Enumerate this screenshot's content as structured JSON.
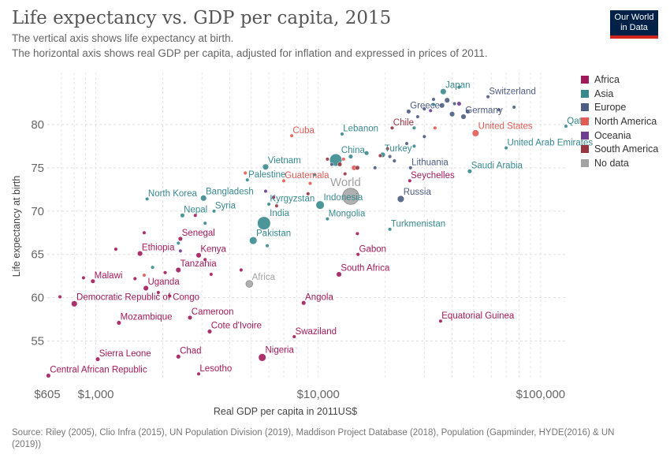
{
  "header": {
    "title": "Life expectancy vs. GDP per capita, 2015",
    "subtitle_line1": "The vertical axis shows life expectancy at birth.",
    "subtitle_line2": "The horizontal axis shows real GDP per capita, adjusted for inflation and expressed in prices of 2011.",
    "logo_line1": "Our World",
    "logo_line2": "in Data"
  },
  "footer": {
    "source": "Source: Riley (2005), Clio Infra (2015), UN Population Division (2019), Maddison Project Database (2018), Population (Gapminder, HYDE(2016) & UN (2019))"
  },
  "chart_data": {
    "type": "scatter",
    "title": "Life expectancy vs. GDP per capita, 2015",
    "xlabel": "Real GDP per capita in 2011US$",
    "ylabel": "Life expectancy at birth",
    "x_scale": "log",
    "xlim": [
      605,
      130000
    ],
    "ylim": [
      50.5,
      86
    ],
    "x_ticks": [
      {
        "value": 605,
        "label": "$605"
      },
      {
        "value": 1000,
        "label": "$1,000"
      },
      {
        "value": 10000,
        "label": "$10,000"
      },
      {
        "value": 100000,
        "label": "$100,000"
      }
    ],
    "y_ticks": [
      55,
      60,
      65,
      70,
      75,
      80
    ],
    "grid": "dashed",
    "legend_position": "right",
    "legend": [
      {
        "name": "Africa",
        "color": "#a2195b"
      },
      {
        "name": "Asia",
        "color": "#38898e"
      },
      {
        "name": "Europe",
        "color": "#4c5c82"
      },
      {
        "name": "North America",
        "color": "#e35a54"
      },
      {
        "name": "Oceania",
        "color": "#6d3e91"
      },
      {
        "name": "South America",
        "color": "#993441"
      },
      {
        "name": "No data",
        "color": "#a2a2a2"
      }
    ],
    "points": [
      {
        "label": "Central African Republic",
        "continent": "Africa",
        "gdp": 612,
        "life": 51.0,
        "size": 4,
        "labeled": true
      },
      {
        "label": "Sierra Leone",
        "continent": "Africa",
        "gdp": 1020,
        "life": 52.9,
        "size": 4,
        "labeled": true
      },
      {
        "label": "Chad",
        "continent": "Africa",
        "gdp": 2350,
        "life": 53.2,
        "size": 4,
        "labeled": true
      },
      {
        "label": "Lesotho",
        "continent": "Africa",
        "gdp": 2900,
        "life": 51.2,
        "size": 3,
        "labeled": true
      },
      {
        "label": "Nigeria",
        "continent": "Africa",
        "gdp": 5600,
        "life": 53.1,
        "size": 8,
        "labeled": true
      },
      {
        "label": "Mozambique",
        "continent": "Africa",
        "gdp": 1270,
        "life": 57.1,
        "size": 4,
        "labeled": true
      },
      {
        "label": "Cameroon",
        "continent": "Africa",
        "gdp": 2650,
        "life": 57.7,
        "size": 4,
        "labeled": true
      },
      {
        "label": "Cote d'Ivoire",
        "continent": "Africa",
        "gdp": 3250,
        "life": 56.1,
        "size": 4,
        "labeled": true
      },
      {
        "label": "Swaziland",
        "continent": "Africa",
        "gdp": 7800,
        "life": 55.5,
        "size": 3,
        "labeled": true
      },
      {
        "label": "Democratic Republic of Congo",
        "continent": "Africa",
        "gdp": 800,
        "life": 59.3,
        "size": 6,
        "labeled": true
      },
      {
        "label": "Malawi",
        "continent": "Africa",
        "gdp": 970,
        "life": 61.9,
        "size": 4,
        "labeled": true
      },
      {
        "label": "Uganda",
        "continent": "Africa",
        "gdp": 1680,
        "life": 61.1,
        "size": 5,
        "labeled": true
      },
      {
        "label": "Angola",
        "continent": "Africa",
        "gdp": 8600,
        "life": 59.4,
        "size": 4,
        "labeled": true
      },
      {
        "label": "Tanzania",
        "continent": "Africa",
        "gdp": 2350,
        "life": 63.2,
        "size": 5,
        "labeled": true
      },
      {
        "label": "Kenya",
        "continent": "Africa",
        "gdp": 2900,
        "life": 64.9,
        "size": 5,
        "labeled": true
      },
      {
        "label": "Senegal",
        "continent": "Africa",
        "gdp": 2400,
        "life": 66.8,
        "size": 4,
        "labeled": true
      },
      {
        "label": "Ethiopia",
        "continent": "Africa",
        "gdp": 1580,
        "life": 65.1,
        "size": 5,
        "labeled": true
      },
      {
        "label": "Gabon",
        "continent": "Africa",
        "gdp": 15100,
        "life": 65.0,
        "size": 3,
        "labeled": true
      },
      {
        "label": "South Africa",
        "continent": "Africa",
        "gdp": 12400,
        "life": 62.7,
        "size": 5,
        "labeled": true
      },
      {
        "label": "Seychelles",
        "continent": "Africa",
        "gdp": 25800,
        "life": 73.5,
        "size": 3,
        "labeled": true
      },
      {
        "label": "Equatorial Guinea",
        "continent": "Africa",
        "gdp": 35500,
        "life": 57.3,
        "size": 3,
        "labeled": true
      },
      {
        "label": "",
        "continent": "Africa",
        "gdp": 690,
        "life": 60.1,
        "size": 3,
        "labeled": false
      },
      {
        "label": "",
        "continent": "Africa",
        "gdp": 880,
        "life": 62.3,
        "size": 3,
        "labeled": false
      },
      {
        "label": "",
        "continent": "Africa",
        "gdp": 1230,
        "life": 65.6,
        "size": 3,
        "labeled": false
      },
      {
        "label": "",
        "continent": "Africa",
        "gdp": 1500,
        "life": 62.2,
        "size": 3,
        "labeled": false
      },
      {
        "label": "",
        "continent": "Africa",
        "gdp": 1910,
        "life": 60.6,
        "size": 3,
        "labeled": false
      },
      {
        "label": "",
        "continent": "Africa",
        "gdp": 2050,
        "life": 62.9,
        "size": 3,
        "labeled": false
      },
      {
        "label": "",
        "continent": "Africa",
        "gdp": 3300,
        "life": 62.7,
        "size": 3,
        "labeled": false
      },
      {
        "label": "",
        "continent": "Africa",
        "gdp": 3100,
        "life": 64.4,
        "size": 3,
        "labeled": false
      },
      {
        "label": "",
        "continent": "Africa",
        "gdp": 4500,
        "life": 63.2,
        "size": 3,
        "labeled": false
      },
      {
        "label": "",
        "continent": "Africa",
        "gdp": 2800,
        "life": 69.5,
        "size": 3,
        "labeled": false
      },
      {
        "label": "",
        "continent": "Africa",
        "gdp": 6300,
        "life": 71.6,
        "size": 3,
        "labeled": false
      },
      {
        "label": "",
        "continent": "Africa",
        "gdp": 15000,
        "life": 67.4,
        "size": 3,
        "labeled": false
      },
      {
        "label": "",
        "continent": "Africa",
        "gdp": 1650,
        "life": 67.5,
        "size": 3,
        "labeled": false
      },
      {
        "label": "",
        "continent": "Africa",
        "gdp": 2150,
        "life": 60.2,
        "size": 3,
        "labeled": false
      },
      {
        "label": "Japan",
        "continent": "Asia",
        "gdp": 36500,
        "life": 83.8,
        "size": 6,
        "labeled": true
      },
      {
        "label": "Qatar",
        "continent": "Asia",
        "gdp": 130000,
        "life": 79.8,
        "size": 3,
        "labeled": true
      },
      {
        "label": "Lebanon",
        "continent": "Asia",
        "gdp": 12800,
        "life": 78.9,
        "size": 3,
        "labeled": true
      },
      {
        "label": "Turkey",
        "continent": "Asia",
        "gdp": 19500,
        "life": 76.5,
        "size": 5,
        "labeled": true
      },
      {
        "label": "United Arab Emirates",
        "continent": "Asia",
        "gdp": 70000,
        "life": 77.3,
        "size": 3,
        "labeled": true
      },
      {
        "label": "China",
        "continent": "Asia",
        "gdp": 12000,
        "life": 75.9,
        "size": 14,
        "labeled": true
      },
      {
        "label": "Vietnam",
        "continent": "Asia",
        "gdp": 5800,
        "life": 75.1,
        "size": 6,
        "labeled": true
      },
      {
        "label": "Saudi Arabia",
        "continent": "Asia",
        "gdp": 48000,
        "life": 74.6,
        "size": 4,
        "labeled": true
      },
      {
        "label": "Palestine",
        "continent": "Asia",
        "gdp": 4800,
        "life": 73.6,
        "size": 3,
        "labeled": true
      },
      {
        "label": "North Korea",
        "continent": "Asia",
        "gdp": 1700,
        "life": 71.4,
        "size": 3,
        "labeled": true
      },
      {
        "label": "Bangladesh",
        "continent": "Asia",
        "gdp": 3050,
        "life": 71.5,
        "size": 6,
        "labeled": true
      },
      {
        "label": "Kyrgyzstan",
        "continent": "Asia",
        "gdp": 6000,
        "life": 70.8,
        "size": 3,
        "labeled": true
      },
      {
        "label": "Indonesia",
        "continent": "Asia",
        "gdp": 10200,
        "life": 70.7,
        "size": 9,
        "labeled": true
      },
      {
        "label": "Nepal",
        "continent": "Asia",
        "gdp": 2450,
        "life": 69.5,
        "size": 4,
        "labeled": true
      },
      {
        "label": "Syria",
        "continent": "Asia",
        "gdp": 3400,
        "life": 70.0,
        "size": 3,
        "labeled": true
      },
      {
        "label": "India",
        "continent": "Asia",
        "gdp": 5700,
        "life": 68.6,
        "size": 15,
        "labeled": true
      },
      {
        "label": "Mongolia",
        "continent": "Asia",
        "gdp": 11000,
        "life": 69.1,
        "size": 3,
        "labeled": true
      },
      {
        "label": "Pakistan",
        "continent": "Asia",
        "gdp": 5100,
        "life": 66.6,
        "size": 8,
        "labeled": true
      },
      {
        "label": "Turkmenistan",
        "continent": "Asia",
        "gdp": 21000,
        "life": 67.9,
        "size": 3,
        "labeled": true
      },
      {
        "label": "",
        "continent": "Asia",
        "gdp": 2350,
        "life": 66.3,
        "size": 3,
        "labeled": false
      },
      {
        "label": "",
        "continent": "Asia",
        "gdp": 1800,
        "life": 63.5,
        "size": 3,
        "labeled": false
      },
      {
        "label": "",
        "continent": "Asia",
        "gdp": 5900,
        "life": 66.0,
        "size": 3,
        "labeled": false
      },
      {
        "label": "",
        "continent": "Asia",
        "gdp": 9600,
        "life": 74.2,
        "size": 3,
        "labeled": false
      },
      {
        "label": "",
        "continent": "Asia",
        "gdp": 14000,
        "life": 76.3,
        "size": 4,
        "labeled": false
      },
      {
        "label": "",
        "continent": "Asia",
        "gdp": 16500,
        "life": 76.7,
        "size": 4,
        "labeled": false
      },
      {
        "label": "",
        "continent": "Asia",
        "gdp": 27000,
        "life": 79.6,
        "size": 3,
        "labeled": false
      },
      {
        "label": "",
        "continent": "Asia",
        "gdp": 33000,
        "life": 82.3,
        "size": 3,
        "labeled": false
      },
      {
        "label": "",
        "continent": "Asia",
        "gdp": 43000,
        "life": 84.3,
        "size": 3,
        "labeled": false
      },
      {
        "label": "",
        "continent": "Asia",
        "gdp": 27000,
        "life": 77.5,
        "size": 3,
        "labeled": false
      },
      {
        "label": "",
        "continent": "Asia",
        "gdp": 3100,
        "life": 68.6,
        "size": 3,
        "labeled": false
      },
      {
        "label": "Greece",
        "continent": "Europe",
        "gdp": 25500,
        "life": 81.5,
        "size": 4,
        "labeled": true
      },
      {
        "label": "Switzerland",
        "continent": "Europe",
        "gdp": 58000,
        "life": 83.2,
        "size": 3,
        "labeled": true
      },
      {
        "label": "Germany",
        "continent": "Europe",
        "gdp": 45000,
        "life": 80.9,
        "size": 5,
        "labeled": true
      },
      {
        "label": "Lithuania",
        "continent": "Europe",
        "gdp": 26000,
        "life": 75.0,
        "size": 3,
        "labeled": true
      },
      {
        "label": "Russia",
        "continent": "Europe",
        "gdp": 23500,
        "life": 71.4,
        "size": 7,
        "labeled": true
      },
      {
        "label": "",
        "continent": "Europe",
        "gdp": 38000,
        "life": 82.8,
        "size": 5,
        "labeled": false
      },
      {
        "label": "",
        "continent": "Europe",
        "gdp": 36000,
        "life": 82.2,
        "size": 5,
        "labeled": false
      },
      {
        "label": "",
        "continent": "Europe",
        "gdp": 40000,
        "life": 81.2,
        "size": 5,
        "labeled": false
      },
      {
        "label": "",
        "continent": "Europe",
        "gdp": 41000,
        "life": 82.4,
        "size": 3,
        "labeled": false
      },
      {
        "label": "",
        "continent": "Europe",
        "gdp": 33000,
        "life": 82.9,
        "size": 3,
        "labeled": false
      },
      {
        "label": "",
        "continent": "Europe",
        "gdp": 28000,
        "life": 80.9,
        "size": 3,
        "labeled": false
      },
      {
        "label": "",
        "continent": "Europe",
        "gdp": 30000,
        "life": 81.8,
        "size": 3,
        "labeled": false
      },
      {
        "label": "",
        "continent": "Europe",
        "gdp": 47000,
        "life": 81.5,
        "size": 4,
        "labeled": false
      },
      {
        "label": "",
        "continent": "Europe",
        "gdp": 65000,
        "life": 81.7,
        "size": 3,
        "labeled": false
      },
      {
        "label": "",
        "continent": "Europe",
        "gdp": 76000,
        "life": 82.0,
        "size": 3,
        "labeled": false
      },
      {
        "label": "",
        "continent": "Europe",
        "gdp": 21000,
        "life": 76.3,
        "size": 3,
        "labeled": false
      },
      {
        "label": "",
        "continent": "Europe",
        "gdp": 18000,
        "life": 75.0,
        "size": 3,
        "labeled": false
      },
      {
        "label": "",
        "continent": "Europe",
        "gdp": 22000,
        "life": 75.8,
        "size": 3,
        "labeled": false
      },
      {
        "label": "",
        "continent": "Europe",
        "gdp": 11500,
        "life": 75.4,
        "size": 3,
        "labeled": false
      },
      {
        "label": "",
        "continent": "Europe",
        "gdp": 25000,
        "life": 77.8,
        "size": 3,
        "labeled": false
      },
      {
        "label": "",
        "continent": "Europe",
        "gdp": 30000,
        "life": 78.6,
        "size": 3,
        "labeled": false
      },
      {
        "label": "Cuba",
        "continent": "North America",
        "gdp": 7600,
        "life": 78.7,
        "size": 3,
        "labeled": true
      },
      {
        "label": "United States",
        "continent": "North America",
        "gdp": 51000,
        "life": 79.0,
        "size": 7,
        "labeled": true
      },
      {
        "label": "Guatemala",
        "continent": "North America",
        "gdp": 7000,
        "life": 73.5,
        "size": 3,
        "labeled": true
      },
      {
        "label": "",
        "continent": "North America",
        "gdp": 14500,
        "life": 75.0,
        "size": 5,
        "labeled": false
      },
      {
        "label": "",
        "continent": "North America",
        "gdp": 13000,
        "life": 76.0,
        "size": 3,
        "labeled": false
      },
      {
        "label": "",
        "continent": "North America",
        "gdp": 9200,
        "life": 73.2,
        "size": 3,
        "labeled": false
      },
      {
        "label": "",
        "continent": "North America",
        "gdp": 4700,
        "life": 74.4,
        "size": 3,
        "labeled": false
      },
      {
        "label": "",
        "continent": "North America",
        "gdp": 1650,
        "life": 62.6,
        "size": 3,
        "labeled": false
      },
      {
        "label": "",
        "continent": "North America",
        "gdp": 33500,
        "life": 79.6,
        "size": 3,
        "labeled": false
      },
      {
        "label": "",
        "continent": "Oceania",
        "gdp": 43000,
        "life": 82.4,
        "size": 4,
        "labeled": false
      },
      {
        "label": "",
        "continent": "Oceania",
        "gdp": 32000,
        "life": 81.6,
        "size": 3,
        "labeled": false
      },
      {
        "label": "",
        "continent": "Oceania",
        "gdp": 2400,
        "life": 65.4,
        "size": 3,
        "labeled": false
      },
      {
        "label": "",
        "continent": "Oceania",
        "gdp": 5800,
        "life": 72.3,
        "size": 3,
        "labeled": false
      },
      {
        "label": "Chile",
        "continent": "South America",
        "gdp": 21500,
        "life": 79.6,
        "size": 3,
        "labeled": true
      },
      {
        "label": "",
        "continent": "South America",
        "gdp": 15000,
        "life": 75.0,
        "size": 4,
        "labeled": false
      },
      {
        "label": "",
        "continent": "South America",
        "gdp": 19000,
        "life": 76.4,
        "size": 3,
        "labeled": false
      },
      {
        "label": "",
        "continent": "South America",
        "gdp": 20500,
        "life": 77.2,
        "size": 3,
        "labeled": false
      },
      {
        "label": "",
        "continent": "South America",
        "gdp": 13200,
        "life": 74.3,
        "size": 3,
        "labeled": false
      },
      {
        "label": "",
        "continent": "South America",
        "gdp": 9000,
        "life": 72.0,
        "size": 3,
        "labeled": false
      },
      {
        "label": "",
        "continent": "South America",
        "gdp": 11000,
        "life": 76.0,
        "size": 3,
        "labeled": false
      },
      {
        "label": "",
        "continent": "South America",
        "gdp": 12500,
        "life": 75.4,
        "size": 4,
        "labeled": false
      },
      {
        "label": "",
        "continent": "South America",
        "gdp": 6500,
        "life": 70.6,
        "size": 3,
        "labeled": false
      },
      {
        "label": "World",
        "continent": "No data",
        "gdp": 14000,
        "life": 71.7,
        "size": 19,
        "labeled": true
      },
      {
        "label": "Africa",
        "continent": "No data",
        "gdp": 4900,
        "life": 61.6,
        "size": 7,
        "labeled": true
      }
    ]
  }
}
